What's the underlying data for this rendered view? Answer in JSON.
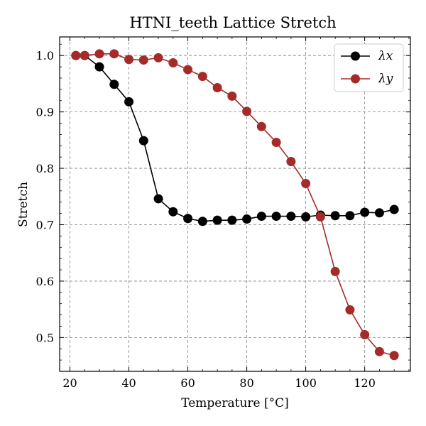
{
  "chart_data": {
    "type": "line",
    "title": "HTNI_teeth Lattice Stretch",
    "xlabel": "Temperature [°C]",
    "ylabel": "Stretch",
    "xlim": [
      16.5,
      135.5
    ],
    "ylim": [
      0.44,
      1.033
    ],
    "xticks": [
      20,
      40,
      60,
      80,
      100,
      120
    ],
    "yticks": [
      0.5,
      0.6,
      0.7,
      0.8,
      0.9,
      1.0
    ],
    "ytick_labels": [
      "0.5",
      "0.6",
      "0.7",
      "0.8",
      "0.9",
      "1.0"
    ],
    "grid": true,
    "legend_position": "upper right",
    "x": [
      22,
      25,
      30,
      35,
      40,
      45,
      50,
      55,
      60,
      65,
      70,
      75,
      80,
      85,
      90,
      95,
      100,
      105,
      110,
      115,
      120,
      125,
      130
    ],
    "series": [
      {
        "name": "λx",
        "color": "#000000",
        "values": [
          1.0,
          1.0,
          0.98,
          0.949,
          0.918,
          0.849,
          0.746,
          0.723,
          0.711,
          0.706,
          0.708,
          0.708,
          0.71,
          0.715,
          0.715,
          0.715,
          0.714,
          0.717,
          0.716,
          0.716,
          0.722,
          0.721,
          0.727
        ]
      },
      {
        "name": "λy",
        "color": "#a52a2a",
        "values": [
          1.0,
          1.0,
          1.003,
          1.003,
          0.993,
          0.992,
          0.996,
          0.987,
          0.975,
          0.963,
          0.943,
          0.928,
          0.901,
          0.874,
          0.846,
          0.812,
          0.773,
          0.714,
          0.617,
          0.549,
          0.505,
          0.475,
          0.468
        ]
      }
    ]
  }
}
